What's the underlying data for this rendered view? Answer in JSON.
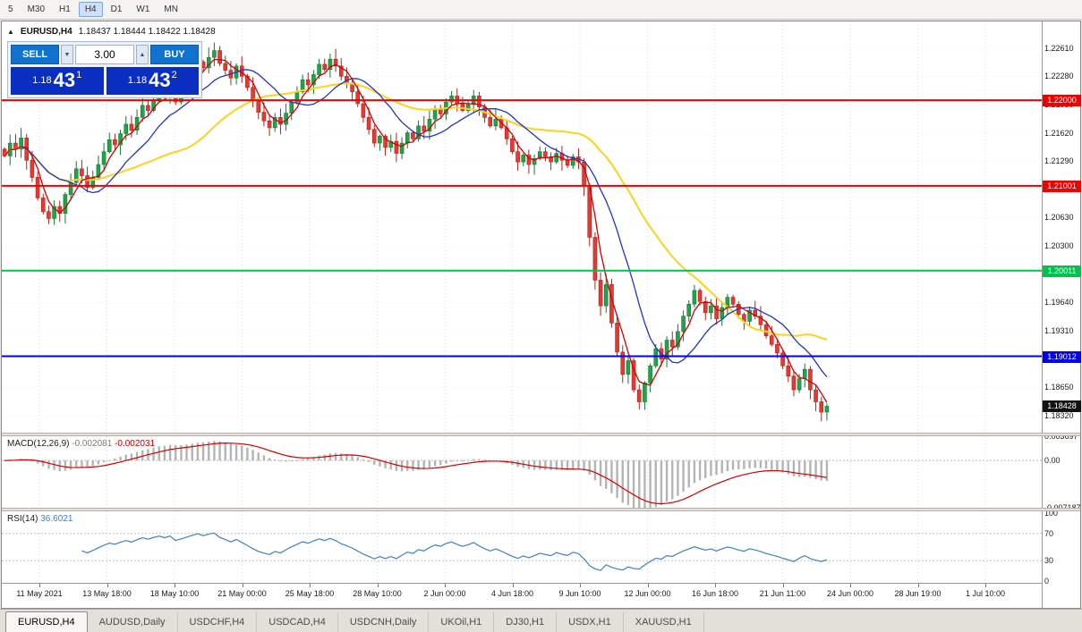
{
  "toolbar": {
    "timeframes": [
      {
        "label": "5",
        "active": false
      },
      {
        "label": "M30",
        "active": false
      },
      {
        "label": "H1",
        "active": false
      },
      {
        "label": "H4",
        "active": true
      },
      {
        "label": "D1",
        "active": false
      },
      {
        "label": "W1",
        "active": false
      },
      {
        "label": "MN",
        "active": false
      }
    ]
  },
  "icons": {
    "panel_toggle": "▲",
    "volume_down": "▼",
    "volume_up": "▲"
  },
  "chart": {
    "title": "EURUSD,H4",
    "quote": "1.18437 1.18444 1.18422 1.18428"
  },
  "trade_panel": {
    "sell_label": "SELL",
    "buy_label": "BUY",
    "volume": "3.00",
    "sell_price": {
      "base": "1.18",
      "big": "43",
      "sup": "1"
    },
    "buy_price": {
      "base": "1.18",
      "big": "43",
      "sup": "2"
    }
  },
  "price_axis": {
    "labels": [
      "1.22610",
      "1.22280",
      "1.21950",
      "1.21620",
      "1.21290",
      "1.20960",
      "1.20630",
      "1.20300",
      "1.19970",
      "1.19640",
      "1.19310",
      "1.18980",
      "1.18650",
      "1.18320"
    ],
    "current": {
      "label": "1.18428",
      "price": 1.18428,
      "color": "#111111"
    }
  },
  "hlines": [
    {
      "price": 1.22,
      "label": "1.22000",
      "color": "#f00000",
      "width": 2
    },
    {
      "price": 1.21001,
      "label": "1.21001",
      "color": "#f00000",
      "width": 2
    },
    {
      "price": 1.20011,
      "label": "1.20011",
      "color": "#00c24e",
      "width": 2
    },
    {
      "price": 1.19012,
      "label": "1.19012",
      "color": "#0000f0",
      "width": 2
    }
  ],
  "series": {
    "closes": [
      1.2135,
      1.215,
      1.2143,
      1.2156,
      1.213,
      1.211,
      1.2086,
      1.207,
      1.2062,
      1.2076,
      1.2068,
      1.209,
      1.2104,
      1.212,
      1.2112,
      1.2098,
      1.211,
      1.2125,
      1.214,
      1.2154,
      1.2148,
      1.2161,
      1.2172,
      1.2165,
      1.218,
      1.2194,
      1.2188,
      1.22,
      1.221,
      1.2204,
      1.2215,
      1.2198,
      1.2208,
      1.222,
      1.2232,
      1.2245,
      1.2238,
      1.225,
      1.2258,
      1.2243,
      1.2235,
      1.2226,
      1.224,
      1.2228,
      1.2215,
      1.22,
      1.2186,
      1.2176,
      1.2168,
      1.218,
      1.2172,
      1.2185,
      1.2198,
      1.221,
      1.2224,
      1.2218,
      1.223,
      1.2242,
      1.2236,
      1.2248,
      1.224,
      1.2228,
      1.222,
      1.221,
      1.2196,
      1.218,
      1.2166,
      1.215,
      1.2158,
      1.2145,
      1.2152,
      1.2138,
      1.215,
      1.2162,
      1.2155,
      1.217,
      1.2164,
      1.2178,
      1.219,
      1.2184,
      1.2198,
      1.2205,
      1.2196,
      1.2188,
      1.2195,
      1.2205,
      1.2192,
      1.218,
      1.217,
      1.2178,
      1.2168,
      1.2155,
      1.214,
      1.2128,
      1.2136,
      1.2125,
      1.2132,
      1.214,
      1.2134,
      1.2128,
      1.2138,
      1.213,
      1.2124,
      1.2134,
      1.2128,
      1.21,
      1.204,
      1.199,
      1.196,
      1.1985,
      1.194,
      1.1906,
      1.188,
      1.1896,
      1.1862,
      1.1848,
      1.187,
      1.189,
      1.191,
      1.1898,
      1.192,
      1.1912,
      1.193,
      1.1948,
      1.1962,
      1.1978,
      1.1965,
      1.1952,
      1.196,
      1.1945,
      1.1958,
      1.197,
      1.1962,
      1.195,
      1.1942,
      1.1955,
      1.1948,
      1.1938,
      1.1925,
      1.1915,
      1.1905,
      1.189,
      1.1878,
      1.1862,
      1.1875,
      1.1886,
      1.1862,
      1.1848,
      1.1836,
      1.18428
    ]
  },
  "macd": {
    "name": "MACD(12,26,9)",
    "value_main": "-0.002081",
    "value_signal": "-0.002031",
    "axis": [
      "0.003697",
      "0.00",
      "-0.007187"
    ],
    "range_top": 0.003697,
    "range_bottom": -0.007187
  },
  "rsi": {
    "name": "RSI(14)",
    "value": "36.6021",
    "axis": [
      "100",
      "70",
      "30",
      "0"
    ],
    "levels": [
      70,
      30
    ]
  },
  "time_axis": [
    "11 May 2021",
    "13 May 18:00",
    "18 May 10:00",
    "21 May 00:00",
    "25 May 18:00",
    "28 May 10:00",
    "2 Jun 00:00",
    "4 Jun 18:00",
    "9 Jun 10:00",
    "12 Jun 00:00",
    "16 Jun 18:00",
    "21 Jun 11:00",
    "24 Jun 00:00",
    "28 Jun 19:00",
    "1 Jul 10:00"
  ],
  "tabs": [
    {
      "label": "EURUSD,H4",
      "active": true
    },
    {
      "label": "AUDUSD,Daily",
      "active": false
    },
    {
      "label": "USDCHF,H4",
      "active": false
    },
    {
      "label": "USDCAD,H4",
      "active": false
    },
    {
      "label": "USDCNH,Daily",
      "active": false
    },
    {
      "label": "UKOil,H1",
      "active": false
    },
    {
      "label": "DJ30,H1",
      "active": false
    },
    {
      "label": "USDX,H1",
      "active": false
    },
    {
      "label": "XAUUSD,H1",
      "active": false
    }
  ],
  "colors": {
    "candle_up": "#23a24b",
    "candle_up_border": "#0f7c33",
    "candle_down": "#e03c33",
    "candle_down_border": "#b0201a",
    "ma_fast": "#d40000",
    "ma_medium": "#2133cc",
    "ma_slow": "#ffd21e",
    "macd_bars": "#b4b4b4",
    "macd_signal": "#d40000",
    "rsi_line": "#3f80c4"
  }
}
